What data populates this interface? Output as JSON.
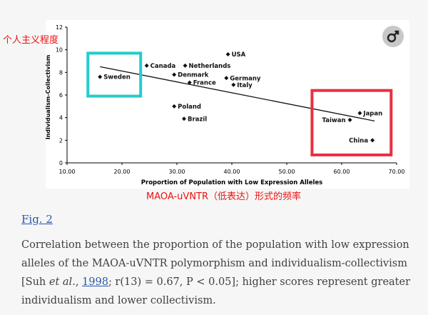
{
  "chart_data": {
    "type": "scatter",
    "title": "",
    "xlabel": "Proportion of Population with Low Expression Alleles",
    "ylabel": "Individualism-Collectivism",
    "xlim": [
      10,
      70
    ],
    "ylim": [
      0,
      12
    ],
    "x_ticks": [
      "10.00",
      "20.00",
      "30.00",
      "40.00",
      "50.00",
      "60.00",
      "70.00"
    ],
    "y_ticks": [
      "0",
      "2",
      "4",
      "6",
      "8",
      "10",
      "12"
    ],
    "grid": false,
    "legend": "none",
    "points": [
      {
        "label": "Sweden",
        "x": 16,
        "y": 7.6,
        "label_pos": "right"
      },
      {
        "label": "Canada",
        "x": 24.5,
        "y": 8.6,
        "label_pos": "right"
      },
      {
        "label": "Netherlands",
        "x": 31.5,
        "y": 8.6,
        "label_pos": "right"
      },
      {
        "label": "USA",
        "x": 39.3,
        "y": 9.6,
        "label_pos": "right"
      },
      {
        "label": "Denmark",
        "x": 29.5,
        "y": 7.8,
        "label_pos": "right"
      },
      {
        "label": "France",
        "x": 32.3,
        "y": 7.1,
        "label_pos": "right"
      },
      {
        "label": "Germany",
        "x": 39,
        "y": 7.5,
        "label_pos": "right"
      },
      {
        "label": "Italy",
        "x": 40.3,
        "y": 6.9,
        "label_pos": "right"
      },
      {
        "label": "Poland",
        "x": 29.5,
        "y": 5.0,
        "label_pos": "right"
      },
      {
        "label": "Brazil",
        "x": 31.3,
        "y": 3.9,
        "label_pos": "right"
      },
      {
        "label": "Taiwan",
        "x": 61.5,
        "y": 3.8,
        "label_pos": "left"
      },
      {
        "label": "Japan",
        "x": 63.3,
        "y": 4.4,
        "label_pos": "right"
      },
      {
        "label": "China",
        "x": 65.6,
        "y": 2.0,
        "label_pos": "left"
      }
    ],
    "trendline": {
      "x": [
        16,
        66
      ],
      "y": [
        8.5,
        3.7
      ]
    },
    "highlight_boxes": [
      {
        "color": "#22cccc",
        "xrange": [
          13.8,
          23.4
        ],
        "yrange": [
          5.9,
          9.7
        ]
      },
      {
        "color": "#e83040",
        "xrange": [
          54.6,
          69.0
        ],
        "yrange": [
          0.7,
          6.4
        ]
      }
    ]
  },
  "annotations": {
    "yaxis_cn": "个人主义程度",
    "xaxis_cn": "MAOA-uVNTR（低表达）形式的频率"
  },
  "icon": {
    "name": "gender-male-female-icon"
  },
  "caption": {
    "fig_label": "Fig. 2",
    "text_before": "Correlation between the proportion of the population with low expression alleles of the MAOA-uVNTR polymorphism and individualism-collectivism [Suh ",
    "et_al": "et al.",
    "text_sep": ", ",
    "ref_year": "1998",
    "text_after": "; r(13) = 0.67, P < 0.05]; higher scores represent greater individualism and lower collectivism."
  },
  "colors": {
    "axis": "#000000",
    "cyan_box": "#22cccc",
    "red_box": "#e83040",
    "annotation": "#ee1111"
  }
}
